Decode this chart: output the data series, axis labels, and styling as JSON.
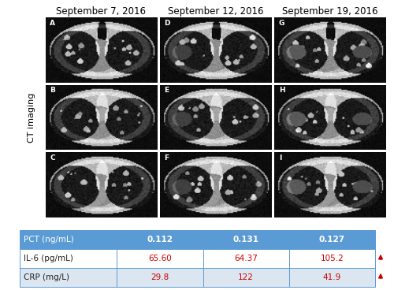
{
  "dates": [
    "September 7, 2016",
    "September 12, 2016",
    "September 19, 2016"
  ],
  "ct_label": "CT imaging",
  "panel_labels": [
    [
      "A",
      "D",
      "G"
    ],
    [
      "B",
      "E",
      "H"
    ],
    [
      "C",
      "F",
      "I"
    ]
  ],
  "table": {
    "row_labels": [
      "PCT (ng/mL)",
      "IL-6 (pg/mL)",
      "CRP (mg/L)"
    ],
    "values": [
      [
        "0.112",
        "0.131",
        "0.127"
      ],
      [
        "65.60",
        "64.37",
        "105.2"
      ],
      [
        "29.8",
        "122",
        "41.9"
      ]
    ],
    "value_colors": [
      [
        "#ffffff",
        "#ffffff",
        "#ffffff"
      ],
      [
        "#cc0000",
        "#cc0000",
        "#cc0000"
      ],
      [
        "#cc0000",
        "#cc0000",
        "#cc0000"
      ]
    ],
    "row_label_colors": [
      "#ffffff",
      "#222222",
      "#222222"
    ],
    "header_bg": "#5b9bd5",
    "row2_bg": "#ffffff",
    "row3_bg": "#dce6f1",
    "rise_arrows": [
      false,
      true,
      true
    ],
    "arrow_color": "#cc0000"
  },
  "bg_color": "#ffffff",
  "border_color": "#5b9bd5",
  "title_fontsize": 8.5,
  "label_fontsize": 8,
  "table_fontsize": 7.5
}
